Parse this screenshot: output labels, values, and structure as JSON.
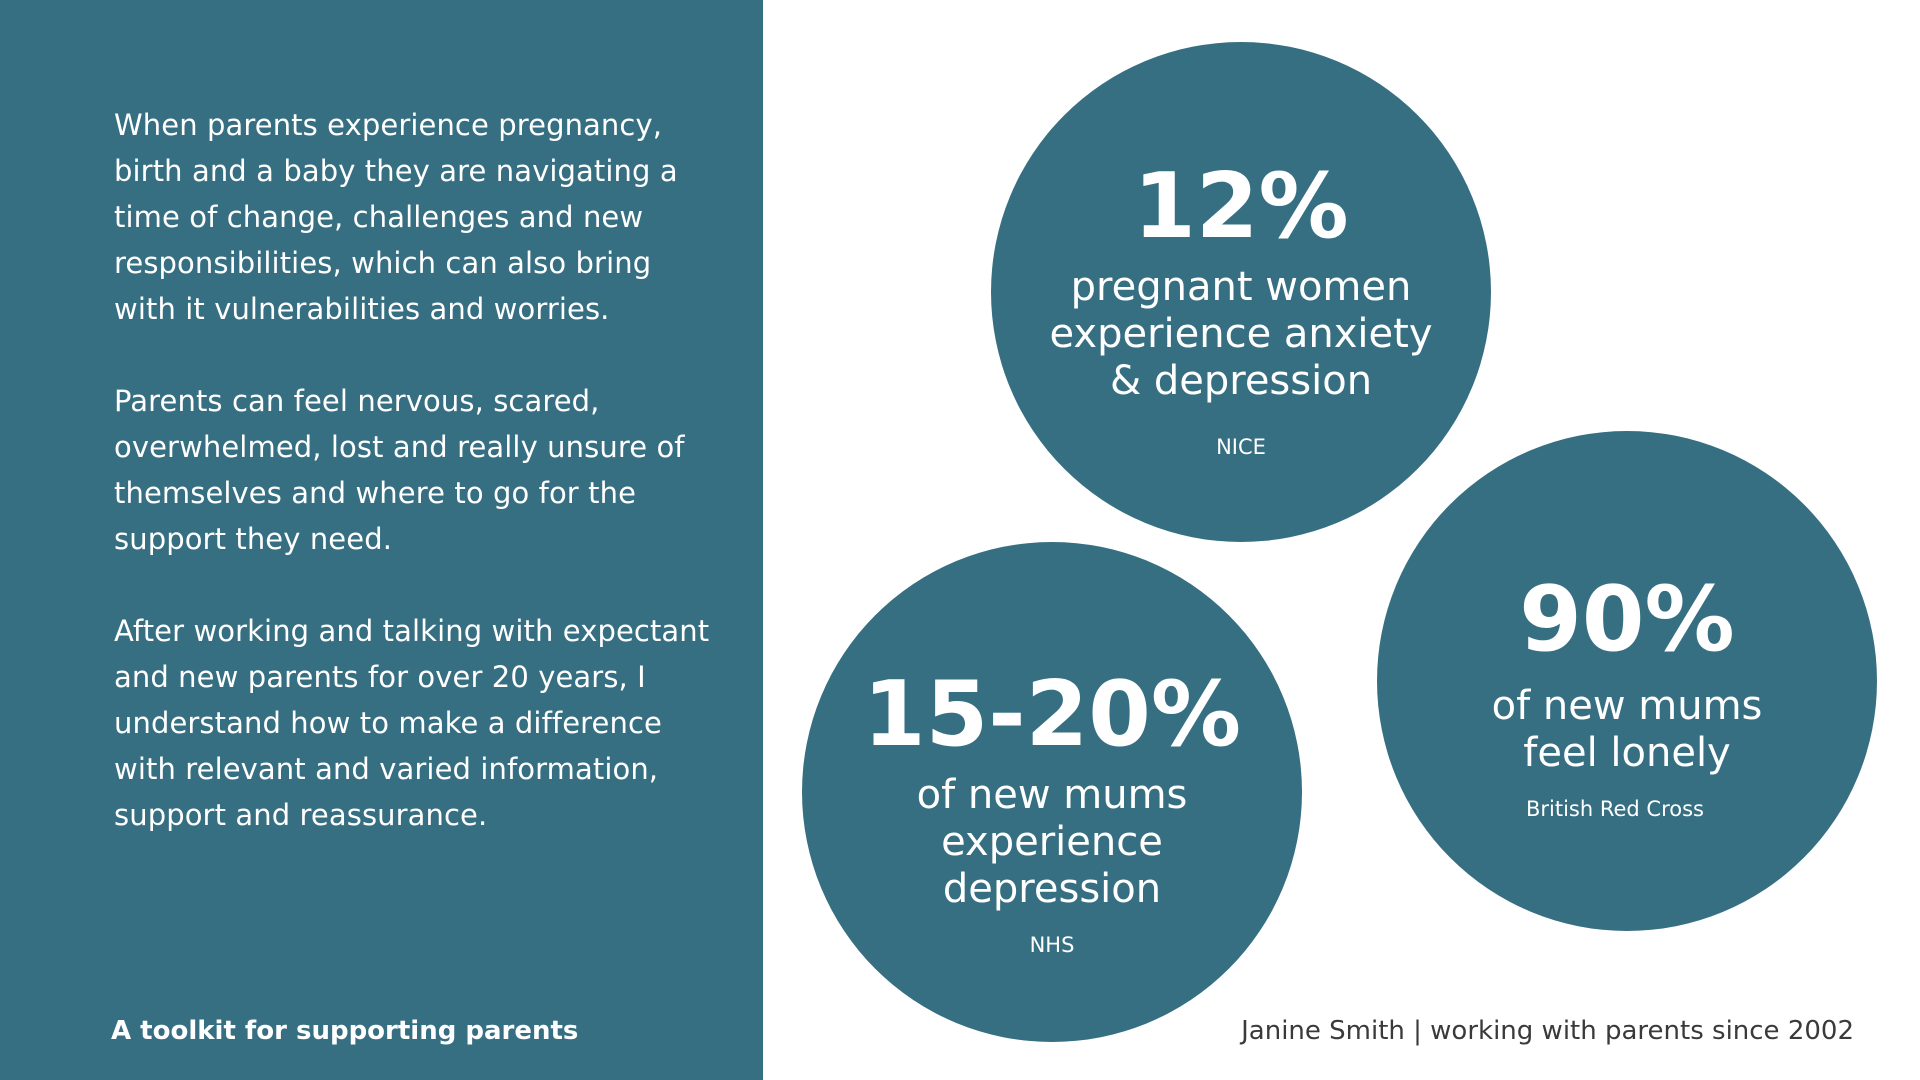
{
  "intro": {
    "paragraphs": [
      "When parents experience pregnancy, birth and a baby they are navigating a time of change, challenges and new responsibilities, which can also bring with it vulnerabilities and worries.",
      "Parents can feel nervous, scared, overwhelmed, lost and really unsure of themselves and where to go for the support they need.",
      "After working and talking with expectant and new parents for over 20 years, I understand how to make a difference with relevant and varied information, support and reassurance."
    ]
  },
  "stats": [
    {
      "value": "12%",
      "description": "pregnant women experience anxiety & depression",
      "source": "NICE"
    },
    {
      "value": "15-20%",
      "description": "of new mums experience depression",
      "source": "NHS"
    },
    {
      "value": "90%",
      "description": "of new mums feel lonely",
      "source": "British Red Cross"
    }
  ],
  "footer": {
    "left": "A toolkit for supporting parents",
    "right": "Janine Smith | working with parents since 2002"
  },
  "colors": {
    "accent": "#376f82",
    "background": "#ffffff"
  }
}
